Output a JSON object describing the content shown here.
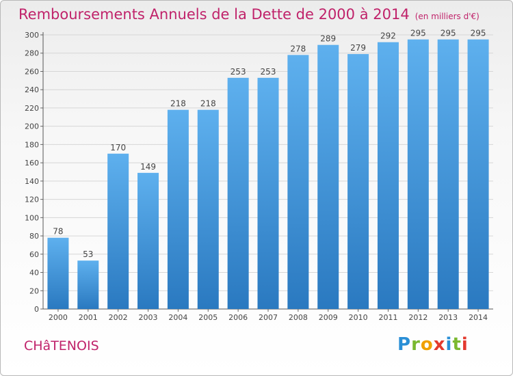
{
  "header": {
    "title": "Remboursements Annuels de la Dette de 2000 à 2014",
    "unit": "(en milliers d'€)"
  },
  "city": "CHâTENOIS",
  "logo": {
    "text": "Proxiti",
    "letters": [
      {
        "ch": "P",
        "color": "#2a8fd6"
      },
      {
        "ch": "r",
        "color": "#7ab82f"
      },
      {
        "ch": "o",
        "color": "#f0a000"
      },
      {
        "ch": "x",
        "color": "#e33a2e"
      },
      {
        "ch": "i",
        "color": "#2a8fd6"
      },
      {
        "ch": "t",
        "color": "#7ab82f"
      },
      {
        "ch": "i",
        "color": "#e33a2e"
      }
    ]
  },
  "colors": {
    "bar_top": "#5eb0ee",
    "bar_bottom": "#2a79c0",
    "title": "#c0226a"
  },
  "chart_data": {
    "type": "bar",
    "title": "Remboursements Annuels de la Dette de 2000 à 2014",
    "ylabel": "en milliers d'€",
    "xlabel": "",
    "categories": [
      "2000",
      "2001",
      "2002",
      "2003",
      "2004",
      "2005",
      "2006",
      "2007",
      "2008",
      "2009",
      "2010",
      "2011",
      "2012",
      "2013",
      "2014"
    ],
    "values": [
      78,
      53,
      170,
      149,
      218,
      218,
      253,
      253,
      278,
      289,
      279,
      292,
      295,
      295,
      295
    ],
    "ylim": [
      0,
      300
    ],
    "yticks": [
      0,
      20,
      40,
      60,
      80,
      100,
      120,
      140,
      160,
      180,
      200,
      220,
      240,
      260,
      280,
      300
    ],
    "grid": true
  }
}
